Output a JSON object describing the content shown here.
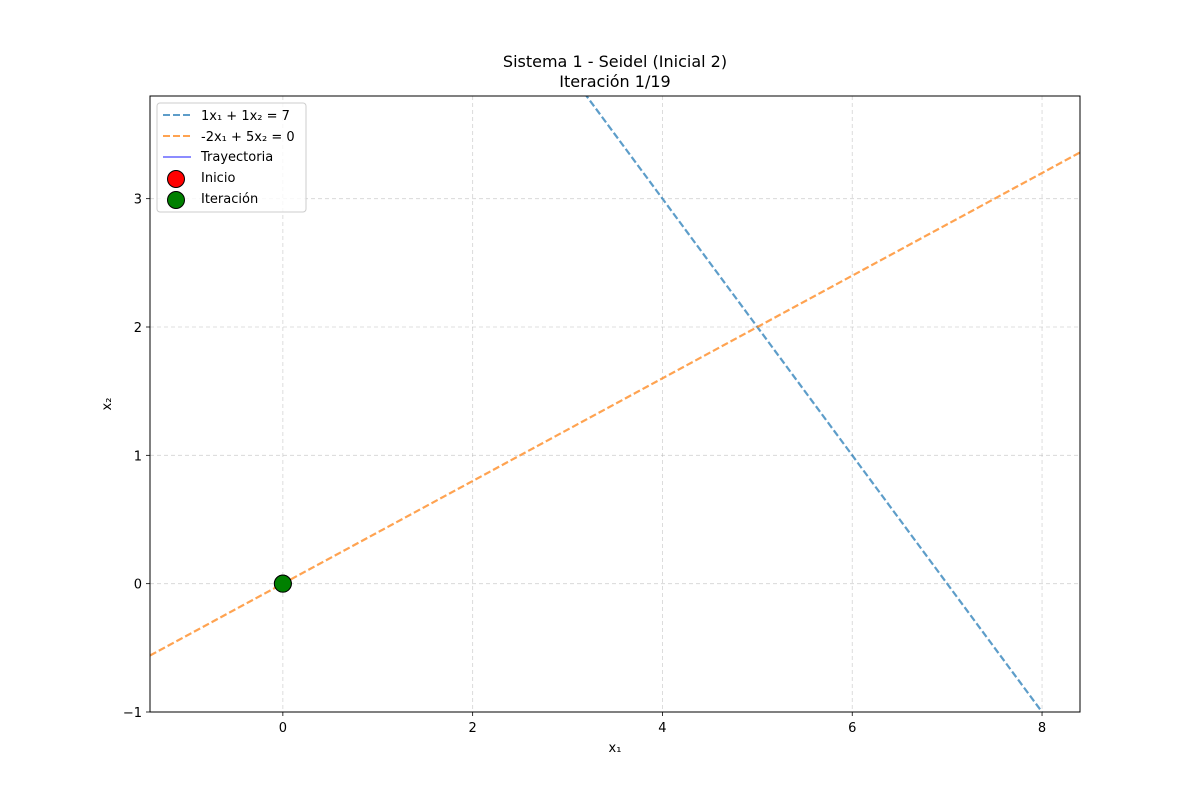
{
  "chart_data": {
    "type": "line",
    "title": "Sistema 1 - Seidel (Inicial 2)",
    "subtitle": "Iteración 1/19",
    "xlabel": "x₁",
    "ylabel": "x₂",
    "xlim": [
      -1.4,
      8.4
    ],
    "ylim": [
      -1,
      3.8
    ],
    "xticks": [
      0,
      2,
      4,
      6,
      8
    ],
    "yticks": [
      -1,
      0,
      1,
      2,
      3
    ],
    "xtick_labels": [
      "0",
      "2",
      "4",
      "6",
      "8"
    ],
    "ytick_labels": [
      "−1",
      "0",
      "1",
      "2",
      "3"
    ],
    "grid": true,
    "legend_position": "top-left",
    "lines": [
      {
        "name": "1x₁ + 1x₂ = 7",
        "a": 1,
        "b": 1,
        "c": 7,
        "color": "#1f77b4",
        "style": "dashed"
      },
      {
        "name": "-2x₁ + 5x₂ = 0",
        "a": -2,
        "b": 5,
        "c": 0,
        "color": "#ff7f0e",
        "style": "dashed"
      }
    ],
    "trajectory": {
      "name": "Trayectoria",
      "color": "#6666ff",
      "points": [
        [
          0,
          0
        ]
      ]
    },
    "start_point": {
      "name": "Inicio",
      "x": 0,
      "y": 0,
      "color": "#ff0000"
    },
    "iteration_point": {
      "name": "Iteración",
      "x": 0,
      "y": 0,
      "color": "#008000"
    }
  }
}
